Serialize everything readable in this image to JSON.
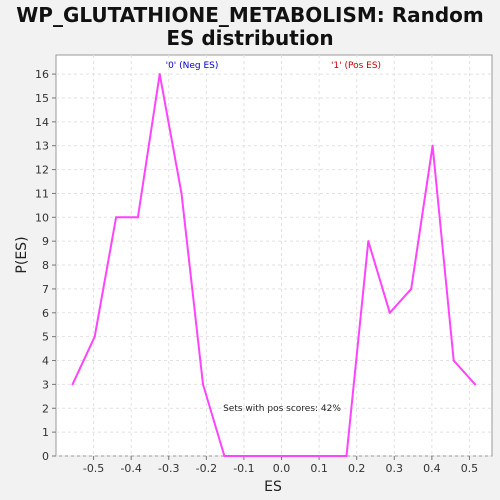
{
  "chart_data": {
    "type": "line",
    "title_line1": "WP_GLUTATHIONE_METABOLISM: Random",
    "title_line2": "ES distribution",
    "xlabel": "ES",
    "ylabel": "P(ES)",
    "xlim": [
      -0.6,
      0.56
    ],
    "ylim": [
      0,
      16.8
    ],
    "xticks": [
      "-0.5",
      "-0.4",
      "-0.3",
      "-0.2",
      "-0.1",
      "0.0",
      "0.1",
      "0.2",
      "0.3",
      "0.4",
      "0.5"
    ],
    "xtick_values": [
      -0.5,
      -0.4,
      -0.3,
      -0.2,
      -0.1,
      0.0,
      0.1,
      0.2,
      0.3,
      0.4,
      0.5
    ],
    "yticks": [
      "0",
      "1",
      "2",
      "3",
      "4",
      "5",
      "6",
      "7",
      "8",
      "9",
      "10",
      "11",
      "12",
      "13",
      "14",
      "15",
      "16"
    ],
    "ytick_values": [
      0,
      1,
      2,
      3,
      4,
      5,
      6,
      7,
      8,
      9,
      10,
      11,
      12,
      13,
      14,
      15,
      16
    ],
    "grid": true,
    "series": [
      {
        "color": "#ff44ff",
        "x": [
          -0.556,
          -0.497,
          -0.44,
          -0.382,
          -0.324,
          -0.266,
          -0.209,
          -0.152,
          0.173,
          0.231,
          0.288,
          0.345,
          0.402,
          0.458,
          0.515
        ],
        "y": [
          3,
          5,
          10,
          10,
          16,
          11,
          3,
          0,
          0,
          9,
          6,
          7,
          13,
          4,
          3
        ]
      }
    ],
    "annotations": {
      "neg_label": "'0' (Neg ES)",
      "pos_label": "'1' (Pos ES)",
      "pos_scores": "Sets with pos scores: 42%"
    },
    "colors": {
      "neg": "#0000cc",
      "pos": "#cc0000",
      "line": "#ff44ff"
    }
  }
}
